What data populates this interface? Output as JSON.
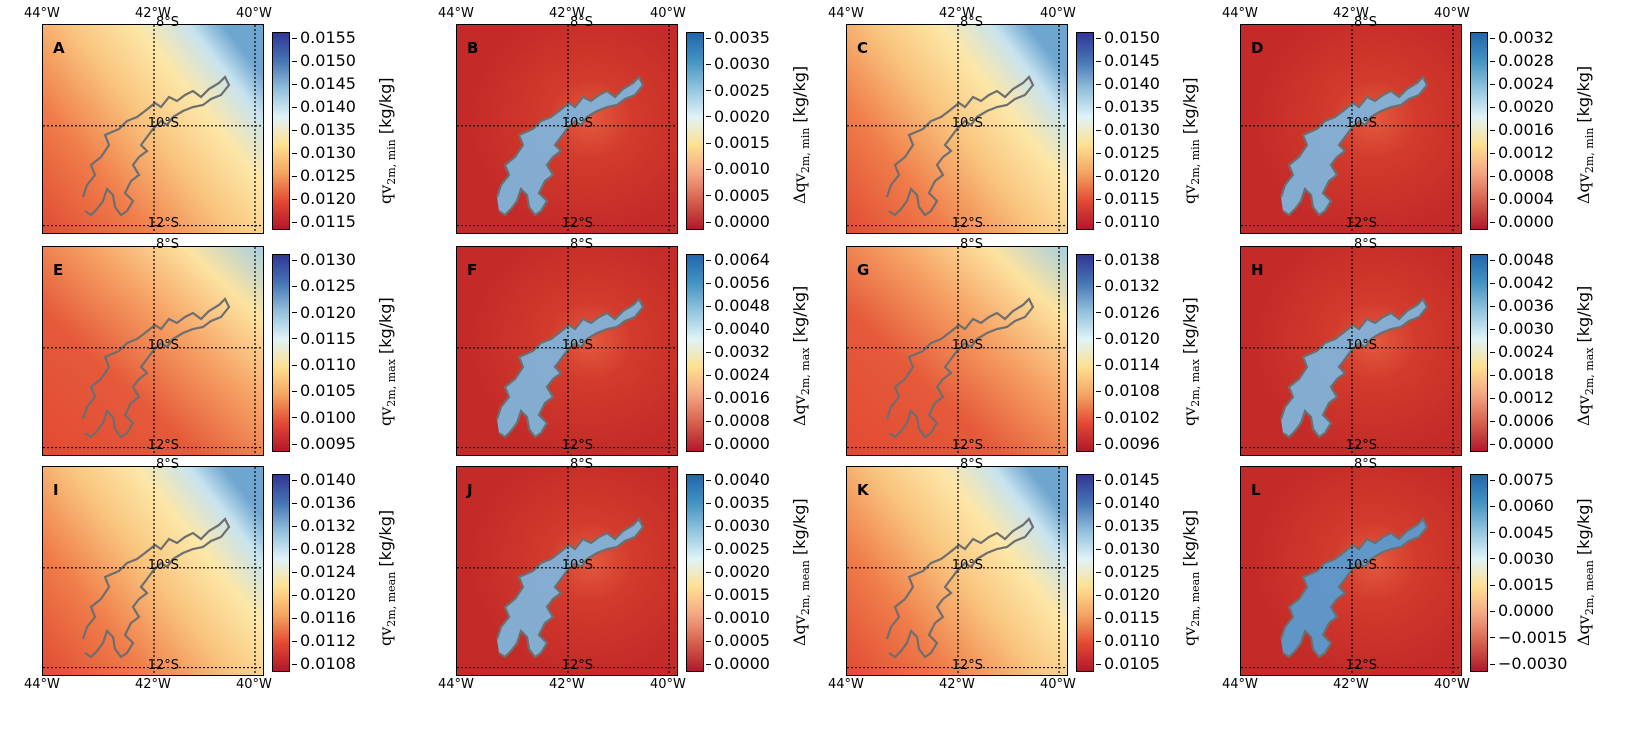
{
  "axes": {
    "lon_labels": [
      "44°W",
      "42°W",
      "40°W"
    ],
    "lat_labels": [
      "8°S",
      "10°S",
      "12°S"
    ]
  },
  "colormaps": {
    "absolute": [
      "#b2182b",
      "#e34a33",
      "#f4a460",
      "#fee090",
      "#e0f3f8",
      "#91bfdb",
      "#4575b4",
      "#313695"
    ],
    "delta": [
      "#b2182b",
      "#d6604d",
      "#f4a582",
      "#fee090",
      "#e0f3f8",
      "#92c5de",
      "#4393c3",
      "#2166ac"
    ]
  },
  "panels": [
    {
      "letter": "A",
      "var_label": "qv",
      "sub": "2m, min",
      "delta": false,
      "unit": "[kg/kg]",
      "ticks": [
        "0.0155",
        "0.0150",
        "0.0145",
        "0.0140",
        "0.0135",
        "0.0130",
        "0.0125",
        "0.0120",
        "0.0115"
      ]
    },
    {
      "letter": "B",
      "var_label": "Δqv",
      "sub": "2m, min",
      "delta": true,
      "unit": "[kg/kg]",
      "ticks": [
        "0.0035",
        "0.0030",
        "0.0025",
        "0.0020",
        "0.0015",
        "0.0010",
        "0.0005",
        "0.0000"
      ]
    },
    {
      "letter": "C",
      "var_label": "qv",
      "sub": "2m, min",
      "delta": false,
      "unit": "[kg/kg]",
      "ticks": [
        "0.0150",
        "0.0145",
        "0.0140",
        "0.0135",
        "0.0130",
        "0.0125",
        "0.0120",
        "0.0115",
        "0.0110"
      ]
    },
    {
      "letter": "D",
      "var_label": "Δqv",
      "sub": "2m, min",
      "delta": true,
      "unit": "[kg/kg]",
      "ticks": [
        "0.0032",
        "0.0028",
        "0.0024",
        "0.0020",
        "0.0016",
        "0.0012",
        "0.0008",
        "0.0004",
        "0.0000"
      ]
    },
    {
      "letter": "E",
      "var_label": "qv",
      "sub": "2m, max",
      "delta": false,
      "unit": "[kg/kg]",
      "ticks": [
        "0.0130",
        "0.0125",
        "0.0120",
        "0.0115",
        "0.0110",
        "0.0105",
        "0.0100",
        "0.0095"
      ]
    },
    {
      "letter": "F",
      "var_label": "Δqv",
      "sub": "2m, max",
      "delta": true,
      "unit": "[kg/kg]",
      "ticks": [
        "0.0064",
        "0.0056",
        "0.0048",
        "0.0040",
        "0.0032",
        "0.0024",
        "0.0016",
        "0.0008",
        "0.0000"
      ]
    },
    {
      "letter": "G",
      "var_label": "qv",
      "sub": "2m, max",
      "delta": false,
      "unit": "[kg/kg]",
      "ticks": [
        "0.0138",
        "0.0132",
        "0.0126",
        "0.0120",
        "0.0114",
        "0.0108",
        "0.0102",
        "0.0096"
      ]
    },
    {
      "letter": "H",
      "var_label": "Δqv",
      "sub": "2m, max",
      "delta": true,
      "unit": "[kg/kg]",
      "ticks": [
        "0.0048",
        "0.0042",
        "0.0036",
        "0.0030",
        "0.0024",
        "0.0018",
        "0.0012",
        "0.0006",
        "0.0000"
      ]
    },
    {
      "letter": "I",
      "var_label": "qv",
      "sub": "2m, mean",
      "delta": false,
      "unit": "[kg/kg]",
      "ticks": [
        "0.0140",
        "0.0136",
        "0.0132",
        "0.0128",
        "0.0124",
        "0.0120",
        "0.0116",
        "0.0112",
        "0.0108"
      ]
    },
    {
      "letter": "J",
      "var_label": "Δqv",
      "sub": "2m, mean",
      "delta": true,
      "unit": "[kg/kg]",
      "ticks": [
        "0.0040",
        "0.0035",
        "0.0030",
        "0.0025",
        "0.0020",
        "0.0015",
        "0.0010",
        "0.0005",
        "0.0000"
      ]
    },
    {
      "letter": "K",
      "var_label": "qv",
      "sub": "2m, mean",
      "delta": false,
      "unit": "[kg/kg]",
      "ticks": [
        "0.0145",
        "0.0140",
        "0.0135",
        "0.0130",
        "0.0125",
        "0.0120",
        "0.0115",
        "0.0110",
        "0.0105"
      ]
    },
    {
      "letter": "L",
      "var_label": "Δqv",
      "sub": "2m, mean",
      "delta": true,
      "unit": "[kg/kg]",
      "ticks": [
        "0.0075",
        "0.0060",
        "0.0045",
        "0.0030",
        "0.0015",
        "0.0000",
        "−0.0015",
        "−0.0030"
      ]
    }
  ]
}
